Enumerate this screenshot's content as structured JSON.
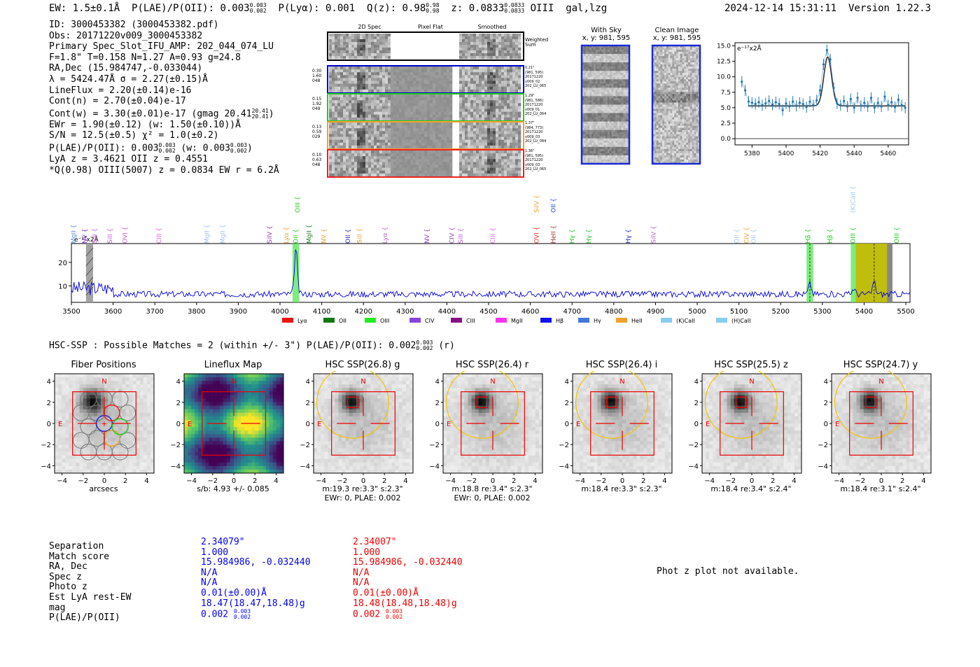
{
  "header": {
    "ew": "EW: 1.5±0.1Å",
    "plae": "P(LAE)/P(OII): 0.003",
    "plae_hi": "0.003",
    "plae_lo": "0.002",
    "plya": "P(Lyα): 0.001",
    "qz": "Q(z): 0.98",
    "qz_hi": "0.98",
    "qz_lo": "0.98",
    "z": "z: 0.0833",
    "z_hi": "0.0833",
    "z_lo": "0.0833",
    "line": "OIII",
    "tags": "gal,lzg",
    "timestamp": "2024-12-14 15:31:11",
    "version": "Version 1.22.3"
  },
  "info": {
    "id": "ID: 3000453382 (3000453382.pdf)",
    "obs": "Obs: 20171220v009_3000453382",
    "primary": "Primary Spec_Slot_IFU_AMP: 202_044_074_LU",
    "params": "F=1.8\"  T=0.158  N=1.27  A=0.93  g=24.8",
    "radec": "RA,Dec (15.984747,-0.033044)",
    "lambda": "λ = 5424.47Å  σ = 2.27(±0.15)Å",
    "lineflux": "LineFlux = 2.20(±0.14)e-16",
    "contn": "Cont(n) = 2.70(±0.04)e-17",
    "contw": "Cont(w) = 3.30(±0.01)e-17 (gmag 20.41",
    "contw_hi": "20.41",
    "contw_lo": "20.41",
    "ewr": "EWr = 1.90(±0.12) (w: 1.50(±0.10))Å",
    "sn": "S/N = 12.5(±0.5)  χ² = 1.0(±0.2)",
    "plae": "P(LAE)/P(OII): 0.003",
    "plae_hi": "0.003",
    "plae_lo": "0.002",
    "plae_w": "(w: 0.003",
    "plae_w_hi": "0.003",
    "plae_w_lo": "0.002",
    "lya": "LyA z = 3.4621  OII z = 0.4551",
    "q": "*Q(0.98) OIII(5007) z = 0.0834  EW r = 6.2Å"
  },
  "spec2d": {
    "headers": [
      "2D Spec",
      "Pixel Flat",
      "Smoothed"
    ],
    "weighted": "Weighted\nSum",
    "rows": [
      {
        "left": "0.30\n1.60\n048",
        "right": "0.21\"\n(981, 595)\n20171220\nv009_02\n202_LU_065",
        "color": "#0000cc"
      },
      {
        "left": "0.15\n1.92\n049",
        "right": "1.29\"\n(981, 586)\n20171220\nv009_01\n202_LU_064",
        "color": "#22cc22"
      },
      {
        "left": "0.13\n0.59\n029",
        "right": "1.37\"\n(984, 773)\n20171220\nv009_03\n202_LU_084",
        "color": "#f0a030"
      },
      {
        "left": "0.10\n0.63\n048",
        "right": "1.36\"\n(981, 595)\n20171220\nv009_03\n202_LU_065",
        "color": "#ee2222"
      }
    ]
  },
  "cutouts": {
    "sky_title": "With Sky",
    "sky_coords": "x, y: 981, 595",
    "clean_title": "Clean Image",
    "clean_coords": "x, y: 981, 595"
  },
  "chart_data": [
    {
      "type": "line",
      "title": "",
      "ylabel": "e⁻¹⁷x2Å",
      "xlim": [
        5370,
        5472
      ],
      "ylim": [
        -1,
        15.5
      ],
      "xticks": [
        5380,
        5400,
        5420,
        5440,
        5460
      ],
      "yticks": [
        0.0,
        2.5,
        5.0,
        7.5,
        10.0,
        12.5,
        15.0
      ],
      "points_x": [
        5374,
        5376,
        5378,
        5380,
        5382,
        5384,
        5386,
        5388,
        5390,
        5392,
        5394,
        5396,
        5398,
        5400,
        5402,
        5404,
        5406,
        5408,
        5410,
        5412,
        5414,
        5416,
        5418,
        5420,
        5422,
        5424,
        5426,
        5428,
        5430,
        5432,
        5434,
        5436,
        5438,
        5440,
        5442,
        5444,
        5446,
        5448,
        5450,
        5452,
        5454,
        5456,
        5458,
        5460,
        5462,
        5464,
        5466,
        5468,
        5470
      ],
      "points_y": [
        9.2,
        7.8,
        6.0,
        5.8,
        5.6,
        5.9,
        5.4,
        5.7,
        6.1,
        5.5,
        5.9,
        5.6,
        4.6,
        5.7,
        5.2,
        6.0,
        5.3,
        5.8,
        5.6,
        5.1,
        6.0,
        5.4,
        6.2,
        7.8,
        12.0,
        14.3,
        12.8,
        8.2,
        5.7,
        5.4,
        6.1,
        5.2,
        6.4,
        5.0,
        6.6,
        5.3,
        5.8,
        5.2,
        6.6,
        5.0,
        5.8,
        5.2,
        6.8,
        5.4,
        5.9,
        5.1,
        6.3,
        5.4,
        5.0
      ],
      "errors": 0.9,
      "model": {
        "continuum": 5.3,
        "peak_x": 5424.47,
        "sigma": 2.27,
        "amplitude": 7.9
      }
    },
    {
      "type": "line",
      "ylabel": "e⁻¹⁷x2Å",
      "xlim": [
        3500,
        5510
      ],
      "ylim": [
        3,
        28
      ],
      "xticks": [
        3500,
        3600,
        3700,
        3800,
        3900,
        4000,
        4100,
        4200,
        4300,
        4400,
        4500,
        4600,
        4700,
        4800,
        4900,
        5000,
        5100,
        5200,
        5300,
        5400,
        5500
      ],
      "yticks": [
        10,
        20
      ],
      "peaks": [
        {
          "x": 4038,
          "y": 26.5
        },
        {
          "x": 5270,
          "y": 11.5
        },
        {
          "x": 5375,
          "y": 9.5
        },
        {
          "x": 5424,
          "y": 12.5
        }
      ],
      "line_labels": [
        {
          "x": 3505,
          "text": "MgII",
          "color": "#5b8fd8"
        },
        {
          "x": 3532,
          "text": "NV",
          "color": "#7b2ddb"
        },
        {
          "x": 3555,
          "text": "SiII",
          "color": "#c060d0"
        },
        {
          "x": 3592,
          "text": "SiII",
          "color": "#c060d0"
        },
        {
          "x": 3628,
          "text": "OVI",
          "color": "#c060d0"
        },
        {
          "x": 3710,
          "text": "CIII",
          "color": "#e060e0"
        },
        {
          "x": 3825,
          "text": "MgII",
          "color": "#a0c0f0"
        },
        {
          "x": 3862,
          "text": "MgII",
          "color": "#a0c0f0"
        },
        {
          "x": 3975,
          "text": "SiIV",
          "color": "#9040c0"
        },
        {
          "x": 4015,
          "text": "Lyα",
          "color": "#f0a030"
        },
        {
          "x": 4038,
          "text": "OII",
          "color": "#22cc22"
        },
        {
          "x": 4042,
          "text": "OIII",
          "color": "#22cc22",
          "high": true
        },
        {
          "x": 4070,
          "text": "MgII",
          "color": "#208020"
        },
        {
          "x": 4105,
          "text": "NV",
          "color": "#f0a030"
        },
        {
          "x": 4163,
          "text": "OII",
          "color": "#2020c0"
        },
        {
          "x": 4190,
          "text": "SiII",
          "color": "#f0a030"
        },
        {
          "x": 4252,
          "text": "Lyα",
          "color": "#c060d0"
        },
        {
          "x": 4352,
          "text": "NV",
          "color": "#9040c0"
        },
        {
          "x": 4412,
          "text": "CIV",
          "color": "#9040c0"
        },
        {
          "x": 4433,
          "text": "SiII",
          "color": "#c060d0"
        },
        {
          "x": 4510,
          "text": "CIII",
          "color": "#e060e0"
        },
        {
          "x": 4615,
          "text": "SiIV",
          "color": "#f0a030",
          "high": true
        },
        {
          "x": 4615,
          "text": "OVI",
          "color": "#f03030"
        },
        {
          "x": 4655,
          "text": "OII",
          "color": "#2050d0",
          "high": true
        },
        {
          "x": 4655,
          "text": "HeII",
          "color": "#a03030"
        },
        {
          "x": 4700,
          "text": "Hγ",
          "color": "#22cc22"
        },
        {
          "x": 4740,
          "text": "Hγ",
          "color": "#22cc22"
        },
        {
          "x": 4835,
          "text": "Hγ",
          "color": "#2020c0"
        },
        {
          "x": 4895,
          "text": "SiIV",
          "color": "#c060d0"
        },
        {
          "x": 5095,
          "text": "OII",
          "color": "#a0c8f0"
        },
        {
          "x": 5118,
          "text": "CIV",
          "color": "#f0a030"
        },
        {
          "x": 5135,
          "text": "OII",
          "color": "#a0c8f0"
        },
        {
          "x": 5265,
          "text": "Hβ",
          "color": "#22cc22"
        },
        {
          "x": 5318,
          "text": "Hβ",
          "color": "#22cc22"
        },
        {
          "x": 5373,
          "text": "OIII",
          "color": "#22cc22"
        },
        {
          "x": 5373,
          "text": "(K)CaII",
          "color": "#a0c8f0",
          "high": true
        },
        {
          "x": 5478,
          "text": "OIII",
          "color": "#22cc22"
        }
      ],
      "legend": [
        {
          "label": "Lyα",
          "color": "#ee1111"
        },
        {
          "label": "OII",
          "color": "#117711"
        },
        {
          "label": "OIII",
          "color": "#22ee22"
        },
        {
          "label": "CIV",
          "color": "#8844dd"
        },
        {
          "label": "CIII",
          "color": "#881188"
        },
        {
          "label": "MgII",
          "color": "#ff33ee"
        },
        {
          "label": "Hβ",
          "color": "#1111ee"
        },
        {
          "label": "Hγ",
          "color": "#4477dd"
        },
        {
          "label": "HeII",
          "color": "#f0a030"
        },
        {
          "label": "(K)CaII",
          "color": "#88ccee"
        },
        {
          "label": "(H)CaII",
          "color": "#88ccee"
        }
      ]
    }
  ],
  "hsc": {
    "summary": "HSC-SSP : Possible Matches = 2 (within +/- 3\")  P(LAE)/P(OII): 0.002",
    "summary_hi": "0.003",
    "summary_lo": "0.002",
    "summary_band": "(r)",
    "panels": [
      {
        "title": "Fiber Positions",
        "cap1": "arcsecs",
        "cap2": ""
      },
      {
        "title": "Lineflux Map",
        "cap1": "s/b: 4.93 +/- 0.085",
        "cap2": ""
      },
      {
        "title": "HSC SSP(26.8) g",
        "cap1": "m:19.3  re:3.3\"  s:2.3\"",
        "cap2": "EWr: 0, PLAE: 0.002"
      },
      {
        "title": "HSC SSP(26.4) r",
        "cap1": "m:18.8  re:3.4\"  s:2.3\"",
        "cap2": "EWr: 0, PLAE: 0.002"
      },
      {
        "title": "HSC SSP(26.4) i",
        "cap1": "m:18.4  re:3.3\"  s:2.3\"",
        "cap2": ""
      },
      {
        "title": "HSC SSP(25.5) z",
        "cap1": "m:18.4  re:3.4\"  s:2.4\"",
        "cap2": ""
      },
      {
        "title": "HSC SSP(24.7) y",
        "cap1": "m:18.4  re:3.1\"  s:2.4\"",
        "cap2": ""
      }
    ],
    "axis_ticks": [
      "4",
      "2",
      "0",
      "−2",
      "−4"
    ],
    "x_ticks": [
      "−4",
      "−2",
      "0",
      "2",
      "4"
    ],
    "compass_n": "N",
    "compass_e": "E"
  },
  "table": {
    "labels": [
      "Separation",
      "Match score",
      "RA, Dec",
      "Spec z",
      "Photo z",
      "Est LyA rest-EW",
      "mag",
      "P(LAE)/P(OII)"
    ],
    "col1": [
      "2.34079\"",
      "1.000",
      "15.984986, -0.032440",
      "N/A",
      "N/A",
      "0.01(±0.00)Å",
      "18.47(18.47,18.48)g",
      "0.002"
    ],
    "col1_hi": "0.003",
    "col1_lo": "0.002",
    "col2": [
      "2.34007\"",
      "1.000",
      "15.984986, -0.032440",
      "N/A",
      "N/A",
      "0.01(±0.00)Å",
      "18.48(18.48,18.48)g",
      "0.002"
    ],
    "col2_hi": "0.003",
    "col2_lo": "0.002",
    "photz_msg": "Phot z plot not available."
  }
}
